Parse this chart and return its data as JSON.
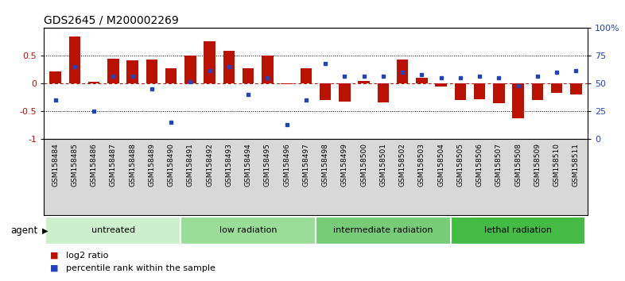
{
  "title": "GDS2645 / M200002269",
  "samples": [
    "GSM158484",
    "GSM158485",
    "GSM158486",
    "GSM158487",
    "GSM158488",
    "GSM158489",
    "GSM158490",
    "GSM158491",
    "GSM158492",
    "GSM158493",
    "GSM158494",
    "GSM158495",
    "GSM158496",
    "GSM158497",
    "GSM158498",
    "GSM158499",
    "GSM158500",
    "GSM158501",
    "GSM158502",
    "GSM158503",
    "GSM158504",
    "GSM158505",
    "GSM158506",
    "GSM158507",
    "GSM158508",
    "GSM158509",
    "GSM158510",
    "GSM158511"
  ],
  "log2_ratio": [
    0.22,
    0.85,
    0.03,
    0.45,
    0.42,
    0.43,
    0.27,
    0.5,
    0.76,
    0.59,
    0.27,
    0.5,
    -0.01,
    0.27,
    -0.3,
    -0.33,
    0.05,
    -0.34,
    0.44,
    0.1,
    -0.05,
    -0.3,
    -0.28,
    -0.35,
    -0.62,
    -0.3,
    -0.17,
    -0.2
  ],
  "percentile": [
    35,
    65,
    25,
    57,
    57,
    45,
    15,
    52,
    62,
    65,
    40,
    55,
    13,
    35,
    68,
    57,
    57,
    57,
    60,
    58,
    55,
    55,
    57,
    55,
    48,
    57,
    60,
    62
  ],
  "groups": [
    {
      "label": "untreated",
      "start": 0,
      "end": 7,
      "color": "#ccf0cc"
    },
    {
      "label": "low radiation",
      "start": 7,
      "end": 14,
      "color": "#99dd99"
    },
    {
      "label": "intermediate radiation",
      "start": 14,
      "end": 21,
      "color": "#77cc77"
    },
    {
      "label": "lethal radiation",
      "start": 21,
      "end": 28,
      "color": "#44bb44"
    }
  ],
  "bar_color": "#bb1100",
  "blue_color": "#2244bb",
  "ylim_left": [
    -1.0,
    1.0
  ],
  "ylim_right": [
    0,
    100
  ],
  "yticks_left": [
    -1.0,
    -0.5,
    0.0,
    0.5
  ],
  "yticks_right": [
    0,
    25,
    50,
    75,
    100
  ],
  "ytick_labels_right": [
    "0",
    "25",
    "50",
    "75",
    "100%"
  ],
  "hline_dotted_vals": [
    0.5,
    -0.5
  ],
  "agent_label": "agent",
  "legend_red": "log2 ratio",
  "legend_blue": "percentile rank within the sample",
  "background_color": "#ffffff",
  "tick_bg_color": "#d8d8d8",
  "title_fontsize": 10,
  "tick_fontsize": 6.5,
  "group_fontsize": 8,
  "legend_fontsize": 8
}
